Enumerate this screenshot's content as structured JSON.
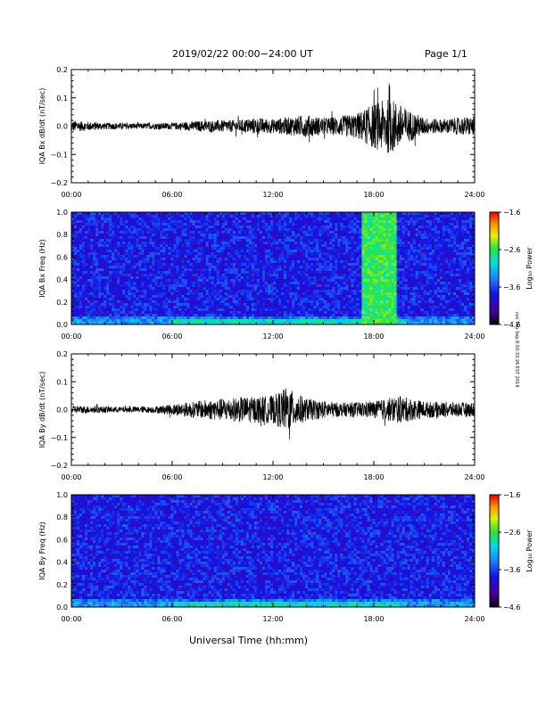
{
  "header": {
    "title": "2019/02/22  00:00−24:00 UT",
    "page": "Page 1/1"
  },
  "footer": {
    "xlabel": "Universal Time (hh:mm)"
  },
  "side_note": "run Thu Sep 8 03:33:26 EST 2019",
  "colors": {
    "trace": "#000000",
    "spectrogram_bg": "#1f5fe0"
  },
  "chart_data": [
    {
      "type": "line",
      "ylabel": "IQA Bx dB/dt (nT/sec)",
      "x_ticks": [
        "00:00",
        "06:00",
        "12:00",
        "18:00",
        "24:00"
      ],
      "y_ticks": [
        "0.2",
        "0.1",
        "0.0",
        "−0.1",
        "−0.2"
      ],
      "ylim": [
        -0.2,
        0.2
      ],
      "xlim_hours": [
        0,
        24
      ],
      "amplitude_envelope": [
        {
          "x": 0,
          "y": 0.02
        },
        {
          "x": 2,
          "y": 0.012
        },
        {
          "x": 4,
          "y": 0.01
        },
        {
          "x": 6,
          "y": 0.012
        },
        {
          "x": 8,
          "y": 0.02
        },
        {
          "x": 10,
          "y": 0.022
        },
        {
          "x": 11,
          "y": 0.03
        },
        {
          "x": 12,
          "y": 0.025
        },
        {
          "x": 14,
          "y": 0.04
        },
        {
          "x": 15,
          "y": 0.03
        },
        {
          "x": 16,
          "y": 0.035
        },
        {
          "x": 17,
          "y": 0.045
        },
        {
          "x": 18,
          "y": 0.08
        },
        {
          "x": 19,
          "y": 0.1
        },
        {
          "x": 20,
          "y": 0.06
        },
        {
          "x": 21,
          "y": 0.03
        },
        {
          "x": 22,
          "y": 0.025
        },
        {
          "x": 24,
          "y": 0.035
        }
      ]
    },
    {
      "type": "heatmap",
      "ylabel": "IQA Bx Freq (Hz)",
      "x_ticks": [
        "00:00",
        "06:00",
        "12:00",
        "18:00",
        "24:00"
      ],
      "y_ticks": [
        "1.0",
        "0.8",
        "0.6",
        "0.4",
        "0.2",
        "0.0"
      ],
      "ylim": [
        0,
        1.0
      ],
      "colorbar": {
        "label": "Log₁₀ Power",
        "ticks": [
          "−1.6",
          "−2.6",
          "−3.6",
          "−4.6"
        ],
        "range": [
          -4.6,
          -1.6
        ]
      },
      "features": [
        {
          "x_start": 17.3,
          "x_end": 19.3,
          "f_low": 0.0,
          "f_high": 1.0,
          "level": -2.6
        }
      ]
    },
    {
      "type": "line",
      "ylabel": "IQA By dB/dt (nT/sec)",
      "x_ticks": [
        "00:00",
        "06:00",
        "12:00",
        "18:00",
        "24:00"
      ],
      "y_ticks": [
        "0.2",
        "0.1",
        "0.0",
        "−0.1",
        "−0.2"
      ],
      "ylim": [
        -0.2,
        0.2
      ],
      "xlim_hours": [
        0,
        24
      ],
      "amplitude_envelope": [
        {
          "x": 0,
          "y": 0.015
        },
        {
          "x": 3,
          "y": 0.01
        },
        {
          "x": 5,
          "y": 0.012
        },
        {
          "x": 6,
          "y": 0.02
        },
        {
          "x": 8,
          "y": 0.035
        },
        {
          "x": 10,
          "y": 0.045
        },
        {
          "x": 12,
          "y": 0.05
        },
        {
          "x": 12.8,
          "y": 0.08
        },
        {
          "x": 14,
          "y": 0.04
        },
        {
          "x": 16,
          "y": 0.025
        },
        {
          "x": 18,
          "y": 0.03
        },
        {
          "x": 19.5,
          "y": 0.05
        },
        {
          "x": 21,
          "y": 0.03
        },
        {
          "x": 24,
          "y": 0.025
        }
      ]
    },
    {
      "type": "heatmap",
      "ylabel": "IQA By Freq (Hz)",
      "x_ticks": [
        "00:00",
        "06:00",
        "12:00",
        "18:00",
        "24:00"
      ],
      "y_ticks": [
        "1.0",
        "0.8",
        "0.6",
        "0.4",
        "0.2",
        "0.0"
      ],
      "ylim": [
        0,
        1.0
      ],
      "colorbar": {
        "label": "Log₁₀ Power",
        "ticks": [
          "−1.6",
          "−2.6",
          "−3.6",
          "−4.6"
        ],
        "range": [
          -4.6,
          -1.6
        ]
      },
      "features": []
    }
  ]
}
